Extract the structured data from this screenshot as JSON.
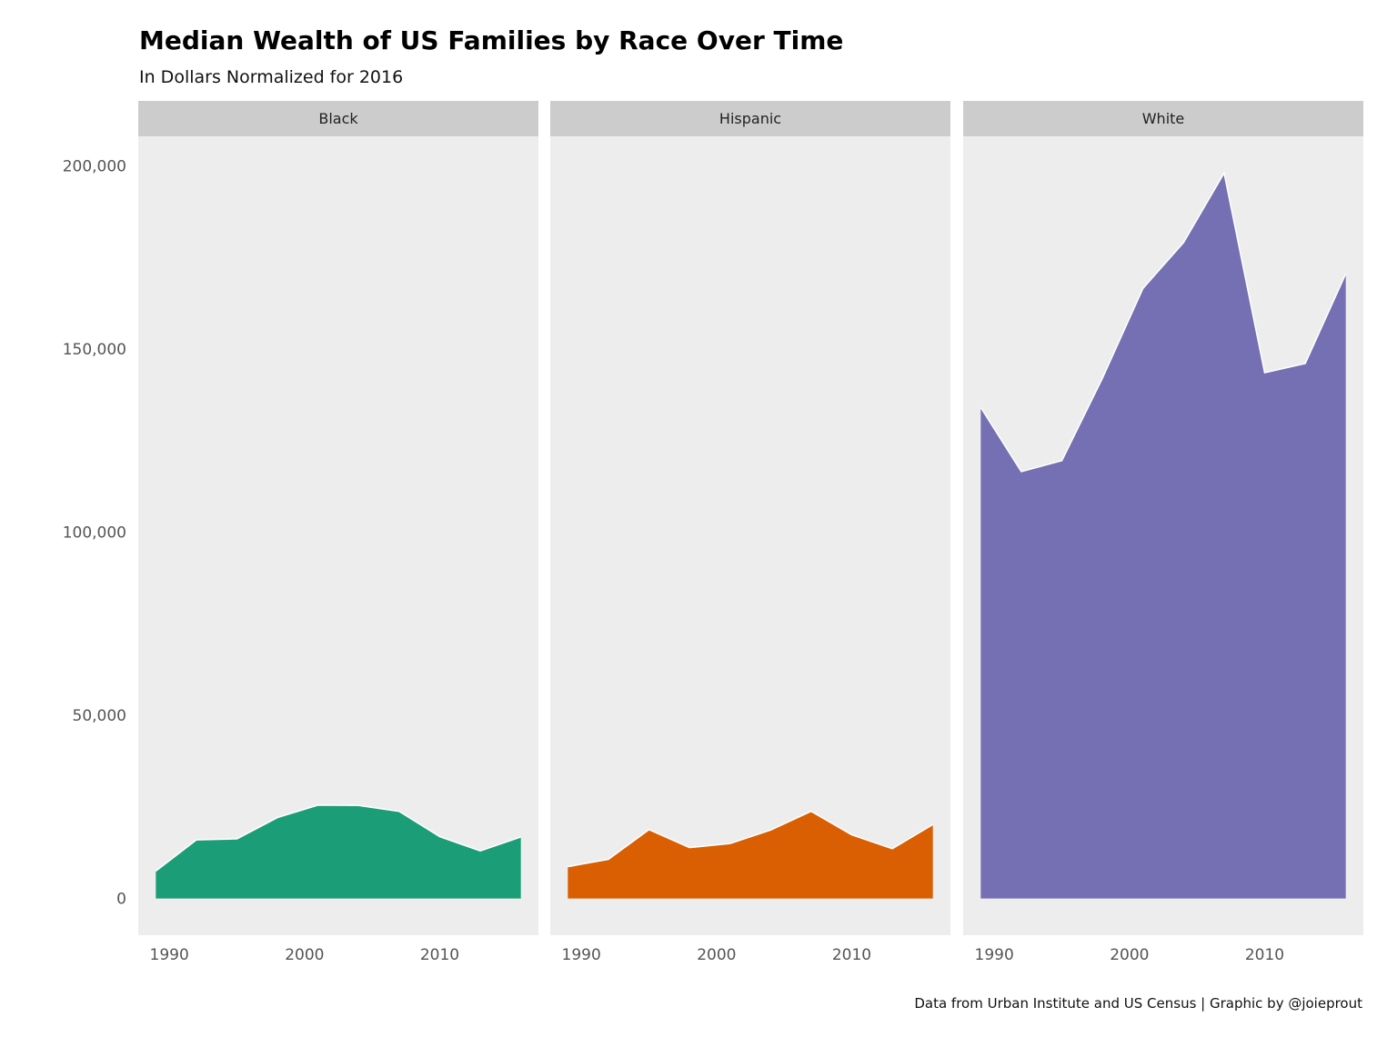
{
  "chart_data": {
    "type": "area",
    "title": "Median Wealth of US Families by Race Over Time",
    "subtitle": "In Dollars Normalized for 2016",
    "caption": "Data from Urban Institute and US Census | Graphic by @joieprout",
    "xlabel": "",
    "ylabel": "",
    "xlim": [
      1987.7,
      2017.3
    ],
    "ylim": [
      -10000,
      208000
    ],
    "x_ticks": [
      1990,
      2000,
      2010
    ],
    "x_tick_labels": [
      "1990",
      "2000",
      "2010"
    ],
    "y_ticks": [
      0,
      50000,
      100000,
      150000,
      200000
    ],
    "y_tick_labels": [
      "0",
      "50,000",
      "100,000",
      "150,000",
      "200,000"
    ],
    "grid": false,
    "legend": "none",
    "facet_colors": {
      "strip_bg": "#cccccc",
      "panel_bg": "#ededed"
    },
    "x": [
      1989,
      1992,
      1995,
      1998,
      2001,
      2004,
      2007,
      2010,
      2013,
      2016
    ],
    "series": [
      {
        "name": "Black",
        "color": "#1b9e77",
        "values": [
          7500,
          16000,
          16300,
          22100,
          25500,
          25400,
          23800,
          16900,
          13000,
          16800
        ]
      },
      {
        "name": "Hispanic",
        "color": "#d95f02",
        "values": [
          8700,
          10700,
          18800,
          13900,
          15000,
          18700,
          23800,
          17400,
          13600,
          20200
        ]
      },
      {
        "name": "White",
        "color": "#7570b3",
        "values": [
          134000,
          116500,
          119500,
          142000,
          166500,
          179000,
          198000,
          143500,
          146000,
          170500
        ]
      }
    ]
  }
}
